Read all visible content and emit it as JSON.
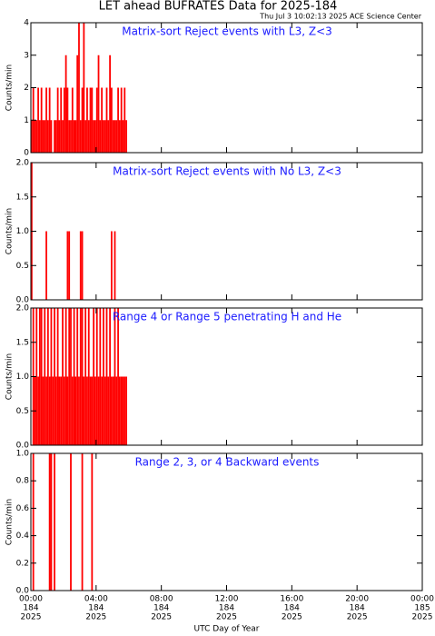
{
  "header": {
    "title": "LET ahead BUFRATES Data for 2025-184",
    "subtitle": "Thu Jul  3 10:02:13 2025 ACE Science Center"
  },
  "chart_data": [
    {
      "type": "bar",
      "title": "Matrix-sort Reject events with L3, Z<3",
      "ylabel": "Counts/min",
      "color": "#ff0000",
      "x": [
        0,
        0.1,
        0.2,
        0.3,
        0.4,
        0.5,
        0.6,
        0.7,
        0.8,
        0.9,
        1,
        1.1,
        1.2,
        1.3,
        1.4,
        1.5,
        1.6,
        1.7,
        1.8,
        1.9,
        2,
        2.1,
        2.2,
        2.3,
        2.4,
        2.5,
        2.6,
        2.7,
        2.8,
        2.9,
        3,
        3.1,
        3.2,
        3.3,
        3.4,
        3.5,
        3.6,
        3.7,
        3.8,
        3.9,
        4,
        4.1,
        4.2,
        4.3,
        4.4,
        4.5,
        4.6,
        4.7,
        4.8,
        4.9,
        5,
        5.1,
        5.2,
        5.3,
        5.4,
        5.5,
        5.6,
        5.7,
        5.8
      ],
      "values": [
        1,
        2,
        1,
        1,
        2,
        1,
        2,
        1,
        1,
        2,
        1,
        2,
        1,
        0,
        1,
        1,
        2,
        1,
        2,
        1,
        2,
        3,
        2,
        1,
        1,
        2,
        1,
        1,
        3,
        4,
        1,
        2,
        4,
        1,
        2,
        1,
        2,
        2,
        1,
        1,
        2,
        3,
        1,
        2,
        1,
        1,
        2,
        1,
        3,
        2,
        1,
        1,
        1,
        2,
        1,
        2,
        1,
        2,
        1
      ],
      "ylim": [
        0,
        4
      ],
      "yticks": [
        0,
        1,
        2,
        3,
        4
      ]
    },
    {
      "type": "bar",
      "title": "Matrix-sort Reject events with No L3, Z<3",
      "ylabel": "Counts/min",
      "color": "#ff0000",
      "x": [
        0,
        0.1,
        0.2,
        0.3,
        0.4,
        0.5,
        0.6,
        0.7,
        0.8,
        0.9,
        1,
        1.1,
        1.2,
        1.3,
        1.4,
        1.5,
        1.6,
        1.7,
        1.8,
        1.9,
        2,
        2.1,
        2.2,
        2.3,
        2.4,
        2.5,
        2.6,
        2.7,
        2.8,
        2.9,
        3,
        3.1,
        3.2,
        3.3,
        3.4,
        3.5,
        3.6,
        3.7,
        3.8,
        3.9,
        4,
        4.1,
        4.2,
        4.3,
        4.4,
        4.5,
        4.6,
        4.7,
        4.8,
        4.9,
        5,
        5.1,
        5.2,
        5.3,
        5.4,
        5.5,
        5.6,
        5.7,
        5.8
      ],
      "values": [
        2,
        0,
        0,
        0,
        0,
        0,
        0,
        0,
        0,
        1,
        0,
        0,
        0,
        0,
        0,
        0,
        0,
        0,
        0,
        0,
        0,
        0,
        1,
        1,
        0,
        0,
        0,
        0,
        0,
        0,
        1,
        1,
        0,
        0,
        0,
        0,
        0,
        0,
        0,
        0,
        0,
        0,
        0,
        0,
        0,
        0,
        0,
        0,
        0,
        1,
        0,
        1,
        0,
        0,
        0,
        0,
        0,
        0,
        0
      ],
      "ylim": [
        0,
        2
      ],
      "yticks": [
        {
          "value": 0,
          "label": "0.0"
        },
        {
          "value": 0.5,
          "label": "0.5"
        },
        {
          "value": 1,
          "label": "1.0"
        },
        {
          "value": 1.5,
          "label": "1.5"
        },
        {
          "value": 2,
          "label": "2.0"
        }
      ]
    },
    {
      "type": "bar",
      "title": "Range 4 or Range 5 penetrating H and He",
      "ylabel": "Counts/min",
      "color": "#ff0000",
      "x": [
        0,
        0.1,
        0.2,
        0.3,
        0.4,
        0.5,
        0.6,
        0.7,
        0.8,
        0.9,
        1,
        1.1,
        1.2,
        1.3,
        1.4,
        1.5,
        1.6,
        1.7,
        1.8,
        1.9,
        2,
        2.1,
        2.2,
        2.3,
        2.4,
        2.5,
        2.6,
        2.7,
        2.8,
        2.9,
        3,
        3.1,
        3.2,
        3.3,
        3.4,
        3.5,
        3.6,
        3.7,
        3.8,
        3.9,
        4,
        4.1,
        4.2,
        4.3,
        4.4,
        4.5,
        4.6,
        4.7,
        4.8,
        4.9,
        5,
        5.1,
        5.2,
        5.3,
        5.4,
        5.5,
        5.6,
        5.7,
        5.8
      ],
      "values": [
        0,
        2,
        1,
        2,
        1,
        2,
        2,
        1,
        2,
        1,
        2,
        1,
        2,
        1,
        2,
        1,
        2,
        1,
        1,
        2,
        1,
        2,
        1,
        2,
        2,
        1,
        2,
        1,
        2,
        1,
        2,
        2,
        1,
        2,
        1,
        2,
        1,
        1,
        2,
        1,
        2,
        1,
        2,
        1,
        2,
        1,
        2,
        1,
        2,
        1,
        1,
        2,
        1,
        2,
        1,
        1,
        1,
        1,
        1
      ],
      "ylim": [
        0,
        2
      ],
      "yticks": [
        {
          "value": 0,
          "label": "0.0"
        },
        {
          "value": 0.5,
          "label": "0.5"
        },
        {
          "value": 1,
          "label": "1.0"
        },
        {
          "value": 1.5,
          "label": "1.5"
        },
        {
          "value": 2,
          "label": "2.0"
        }
      ]
    },
    {
      "type": "bar",
      "title": "Range 2, 3, or 4 Backward events",
      "ylabel": "Counts/min",
      "color": "#ff0000",
      "x": [
        0,
        0.1,
        0.2,
        0.3,
        0.4,
        0.5,
        0.6,
        0.7,
        0.8,
        0.9,
        1,
        1.1,
        1.2,
        1.3,
        1.4,
        1.5,
        1.6,
        1.7,
        1.8,
        1.9,
        2,
        2.1,
        2.2,
        2.3,
        2.4,
        2.5,
        2.6,
        2.7,
        2.8,
        2.9,
        3,
        3.1,
        3.2,
        3.3,
        3.4,
        3.5,
        3.6,
        3.7,
        3.8,
        3.9,
        4,
        4.1,
        4.2,
        4.3,
        4.4,
        4.5,
        4.6,
        4.7,
        4.8,
        4.9,
        5,
        5.1,
        5.2,
        5.3,
        5.4,
        5.5,
        5.6,
        5.7,
        5.8
      ],
      "values": [
        0,
        1,
        0,
        0,
        0,
        0,
        0,
        0,
        0,
        0,
        0,
        1,
        1,
        0,
        1,
        0,
        0,
        0,
        0,
        0,
        0,
        0,
        0,
        0,
        1,
        0,
        0,
        0,
        0,
        0,
        0,
        1,
        0,
        0,
        0,
        0,
        0,
        1,
        0,
        0,
        0,
        0,
        0,
        0,
        0,
        0,
        0,
        0,
        0,
        0,
        0,
        0,
        0,
        0,
        0,
        0,
        0,
        0,
        0
      ],
      "ylim": [
        0,
        1
      ],
      "yticks": [
        {
          "value": 0,
          "label": "0.0"
        },
        {
          "value": 0.2,
          "label": "0.2"
        },
        {
          "value": 0.4,
          "label": "0.4"
        },
        {
          "value": 0.6,
          "label": "0.6"
        },
        {
          "value": 0.8,
          "label": "0.8"
        },
        {
          "value": 1,
          "label": "1.0"
        }
      ],
      "xlabel": "UTC Day of Year",
      "xlim": [
        0,
        24
      ],
      "xticks": [
        {
          "value": 0,
          "label": "00:00"
        },
        {
          "value": 4,
          "label": "04:00"
        },
        {
          "value": 8,
          "label": "08:00"
        },
        {
          "value": 12,
          "label": "12:00"
        },
        {
          "value": 16,
          "label": "16:00"
        },
        {
          "value": 20,
          "label": "20:00"
        },
        {
          "value": 24,
          "label": "00:00"
        }
      ],
      "xtick_days": [
        "184",
        "184",
        "184",
        "184",
        "184",
        "184",
        "185"
      ],
      "xtick_years": [
        "2025",
        "2025",
        "2025",
        "2025",
        "2025",
        "2025",
        "2025"
      ]
    }
  ]
}
